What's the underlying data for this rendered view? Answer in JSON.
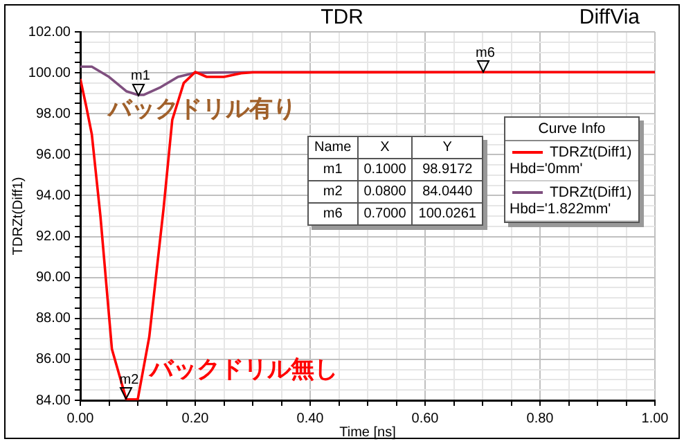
{
  "chart_data": {
    "type": "line",
    "title": "TDR",
    "subtitle": "DiffVia",
    "xlabel": "Time [ns]",
    "ylabel": "TDRZt(Diff1)",
    "legend_title": "Curve Info",
    "legend": "top right",
    "grid": true,
    "marker": "none",
    "line_style": "solid",
    "xlim": [
      0,
      1
    ],
    "ylim": [
      84,
      102
    ],
    "xticks": [
      {
        "value": 0,
        "label": "0.00"
      },
      {
        "value": 0.05,
        "label": null
      },
      {
        "value": 0.1,
        "label": null
      },
      {
        "value": 0.15,
        "label": null
      },
      {
        "value": 0.2,
        "label": "0.20"
      },
      {
        "value": 0.25,
        "label": null
      },
      {
        "value": 0.3,
        "label": null
      },
      {
        "value": 0.35,
        "label": null
      },
      {
        "value": 0.4,
        "label": "0.40"
      },
      {
        "value": 0.45,
        "label": null
      },
      {
        "value": 0.5,
        "label": null
      },
      {
        "value": 0.55,
        "label": null
      },
      {
        "value": 0.6,
        "label": "0.60"
      },
      {
        "value": 0.65,
        "label": null
      },
      {
        "value": 0.7,
        "label": null
      },
      {
        "value": 0.75,
        "label": null
      },
      {
        "value": 0.8,
        "label": "0.80"
      },
      {
        "value": 0.85,
        "label": null
      },
      {
        "value": 0.9,
        "label": null
      },
      {
        "value": 0.95,
        "label": null
      },
      {
        "value": 1,
        "label": "1.00"
      }
    ],
    "yticks": [
      {
        "value": 84,
        "label": "84.00"
      },
      {
        "value": 84.5,
        "label": null
      },
      {
        "value": 85,
        "label": null
      },
      {
        "value": 85.5,
        "label": null
      },
      {
        "value": 86,
        "label": "86.00"
      },
      {
        "value": 86.5,
        "label": null
      },
      {
        "value": 87,
        "label": null
      },
      {
        "value": 87.5,
        "label": null
      },
      {
        "value": 88,
        "label": "88.00"
      },
      {
        "value": 88.5,
        "label": null
      },
      {
        "value": 89,
        "label": null
      },
      {
        "value": 89.5,
        "label": null
      },
      {
        "value": 90,
        "label": "90.00"
      },
      {
        "value": 90.5,
        "label": null
      },
      {
        "value": 91,
        "label": null
      },
      {
        "value": 91.5,
        "label": null
      },
      {
        "value": 92,
        "label": "92.00"
      },
      {
        "value": 92.5,
        "label": null
      },
      {
        "value": 93,
        "label": null
      },
      {
        "value": 93.5,
        "label": null
      },
      {
        "value": 94,
        "label": "94.00"
      },
      {
        "value": 94.5,
        "label": null
      },
      {
        "value": 95,
        "label": null
      },
      {
        "value": 95.5,
        "label": null
      },
      {
        "value": 96,
        "label": "96.00"
      },
      {
        "value": 96.5,
        "label": null
      },
      {
        "value": 97,
        "label": null
      },
      {
        "value": 97.5,
        "label": null
      },
      {
        "value": 98,
        "label": "98.00"
      },
      {
        "value": 98.5,
        "label": null
      },
      {
        "value": 99,
        "label": null
      },
      {
        "value": 99.5,
        "label": null
      },
      {
        "value": 100,
        "label": "100.00"
      },
      {
        "value": 100.5,
        "label": null
      },
      {
        "value": 101,
        "label": null
      },
      {
        "value": 101.5,
        "label": null
      },
      {
        "value": 102,
        "label": "102.00"
      }
    ],
    "series": [
      {
        "name": "TDRZt(Diff1)\nHbd='0mm'",
        "color": "#ff0000",
        "x": [
          0,
          0.01,
          0.02,
          0.035,
          0.055,
          0.08,
          0.1,
          0.12,
          0.145,
          0.16,
          0.18,
          0.2,
          0.22,
          0.25,
          0.28,
          0.3,
          0.7,
          1
        ],
        "values": [
          99.7,
          98.4,
          97.0,
          93.0,
          86.5,
          84.04,
          84.05,
          87.1,
          93.4,
          97.7,
          99.5,
          100.04,
          99.8,
          99.8,
          99.98,
          100.02,
          100.03,
          100.03
        ]
      },
      {
        "name": "TDRZt(Diff1)\nHbd='1.822mm'",
        "color": "#7f4f7f",
        "x": [
          0,
          0.02,
          0.05,
          0.08,
          0.1,
          0.11,
          0.14,
          0.17,
          0.2,
          0.3,
          1
        ],
        "values": [
          100.3,
          100.3,
          99.8,
          99.1,
          98.92,
          98.92,
          99.3,
          99.8,
          100.0,
          100.03,
          100.03
        ]
      }
    ],
    "annotations": [
      {
        "text": "m1",
        "x": 0.1,
        "y": 98.9172
      },
      {
        "text": "m2",
        "x": 0.08,
        "y": 84.044
      },
      {
        "text": "m6",
        "x": 0.7,
        "y": 100.0261
      },
      "バックドリル有り",
      "バックドリル無し",
      "Name",
      "X",
      "Y",
      "m1",
      "0.1000",
      "98.9172",
      "m2",
      "0.0800",
      "84.0440",
      "m6",
      "0.7000",
      "100.0261"
    ]
  }
}
